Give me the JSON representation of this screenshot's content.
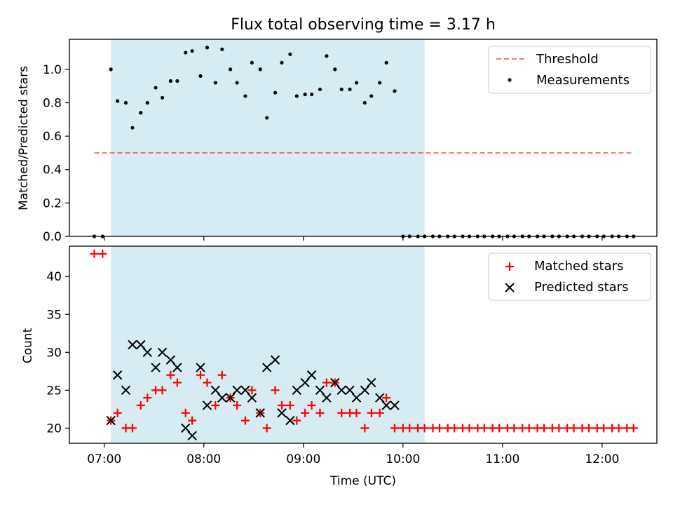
{
  "figure": {
    "title": "Flux total observing time = 3.17 h",
    "background": "#ffffff"
  },
  "chart_data": [
    {
      "type": "scatter",
      "name": "top",
      "ylabel": "Matched/Predicted stars",
      "xlabel": "",
      "ylim": [
        0.0,
        1.18
      ],
      "yticks": [
        0.0,
        0.2,
        0.4,
        0.6,
        0.8,
        1.0
      ],
      "ytick_labels": [
        "0.0",
        "0.2",
        "0.4",
        "0.6",
        "0.8",
        "1.0"
      ],
      "xlim": [
        "06:39",
        "12:33"
      ],
      "xticks": [
        "07:00",
        "08:00",
        "09:00",
        "10:00",
        "11:00",
        "12:00"
      ],
      "xtick_labels": [
        "07:00",
        "08:00",
        "09:00",
        "10:00",
        "11:00",
        "12:00"
      ],
      "grid": false,
      "legend_position": "top-right",
      "observing_window": {
        "start": "07:04",
        "end": "10:13",
        "color": "#add8e6"
      },
      "threshold": {
        "label": "Threshold",
        "value": 0.5,
        "x_range": [
          "06:54",
          "12:18"
        ],
        "color": "#ff0000",
        "style": "dashed"
      },
      "measurements": {
        "label": "Measurements",
        "color": "#000000",
        "points": [
          [
            "06:54",
            0.0
          ],
          [
            "06:59",
            0.0
          ],
          [
            "07:04",
            1.0
          ],
          [
            "07:08",
            0.81
          ],
          [
            "07:13",
            0.8
          ],
          [
            "07:17",
            0.65
          ],
          [
            "07:22",
            0.74
          ],
          [
            "07:26",
            0.8
          ],
          [
            "07:31",
            0.89
          ],
          [
            "07:35",
            0.83
          ],
          [
            "07:40",
            0.93
          ],
          [
            "07:44",
            0.93
          ],
          [
            "07:49",
            1.1
          ],
          [
            "07:53",
            1.11
          ],
          [
            "07:58",
            0.96
          ],
          [
            "08:02",
            1.13
          ],
          [
            "08:07",
            0.92
          ],
          [
            "08:11",
            1.12
          ],
          [
            "08:16",
            1.0
          ],
          [
            "08:20",
            0.92
          ],
          [
            "08:25",
            0.84
          ],
          [
            "08:29",
            1.04
          ],
          [
            "08:34",
            1.0
          ],
          [
            "08:38",
            0.71
          ],
          [
            "08:43",
            0.86
          ],
          [
            "08:47",
            1.04
          ],
          [
            "08:52",
            1.09
          ],
          [
            "08:56",
            0.84
          ],
          [
            "09:01",
            0.85
          ],
          [
            "09:05",
            0.85
          ],
          [
            "09:10",
            0.88
          ],
          [
            "09:14",
            1.08
          ],
          [
            "09:19",
            1.0
          ],
          [
            "09:23",
            0.88
          ],
          [
            "09:28",
            0.88
          ],
          [
            "09:32",
            0.92
          ],
          [
            "09:37",
            0.8
          ],
          [
            "09:41",
            0.84
          ],
          [
            "09:46",
            0.92
          ],
          [
            "09:50",
            1.04
          ],
          [
            "09:55",
            0.87
          ],
          [
            "10:00",
            0.0
          ],
          [
            "10:04",
            0.0
          ],
          [
            "10:09",
            0.0
          ],
          [
            "10:13",
            0.0
          ],
          [
            "10:18",
            0.0
          ],
          [
            "10:22",
            0.0
          ],
          [
            "10:27",
            0.0
          ],
          [
            "10:31",
            0.0
          ],
          [
            "10:36",
            0.0
          ],
          [
            "10:40",
            0.0
          ],
          [
            "10:45",
            0.0
          ],
          [
            "10:49",
            0.0
          ],
          [
            "10:54",
            0.0
          ],
          [
            "10:58",
            0.0
          ],
          [
            "11:03",
            0.0
          ],
          [
            "11:07",
            0.0
          ],
          [
            "11:12",
            0.0
          ],
          [
            "11:16",
            0.0
          ],
          [
            "11:21",
            0.0
          ],
          [
            "11:25",
            0.0
          ],
          [
            "11:30",
            0.0
          ],
          [
            "11:34",
            0.0
          ],
          [
            "11:39",
            0.0
          ],
          [
            "11:43",
            0.0
          ],
          [
            "11:48",
            0.0
          ],
          [
            "11:52",
            0.0
          ],
          [
            "11:57",
            0.0
          ],
          [
            "12:01",
            0.0
          ],
          [
            "12:06",
            0.0
          ],
          [
            "12:10",
            0.0
          ],
          [
            "12:15",
            0.0
          ],
          [
            "12:19",
            0.0
          ]
        ]
      }
    },
    {
      "type": "scatter",
      "name": "bottom",
      "ylabel": "Count",
      "xlabel": "Time (UTC)",
      "ylim": [
        18.0,
        44.0
      ],
      "yticks": [
        20,
        25,
        30,
        35,
        40
      ],
      "ytick_labels": [
        "20",
        "25",
        "30",
        "35",
        "40"
      ],
      "xlim": [
        "06:39",
        "12:33"
      ],
      "xticks": [
        "07:00",
        "08:00",
        "09:00",
        "10:00",
        "11:00",
        "12:00"
      ],
      "xtick_labels": [
        "07:00",
        "08:00",
        "09:00",
        "10:00",
        "11:00",
        "12:00"
      ],
      "grid": false,
      "legend_position": "top-right",
      "observing_window": {
        "start": "07:04",
        "end": "10:13",
        "color": "#add8e6"
      },
      "series": [
        {
          "name": "Matched stars",
          "marker": "plus",
          "color": "#ff0000",
          "points": [
            [
              "06:54",
              43
            ],
            [
              "06:59",
              43
            ],
            [
              "07:04",
              21
            ],
            [
              "07:08",
              22
            ],
            [
              "07:13",
              20
            ],
            [
              "07:17",
              20
            ],
            [
              "07:22",
              23
            ],
            [
              "07:26",
              24
            ],
            [
              "07:31",
              25
            ],
            [
              "07:35",
              25
            ],
            [
              "07:40",
              27
            ],
            [
              "07:44",
              26
            ],
            [
              "07:49",
              22
            ],
            [
              "07:53",
              21
            ],
            [
              "07:58",
              27
            ],
            [
              "08:02",
              26
            ],
            [
              "08:07",
              23
            ],
            [
              "08:11",
              27
            ],
            [
              "08:16",
              24
            ],
            [
              "08:20",
              23
            ],
            [
              "08:25",
              21
            ],
            [
              "08:29",
              25
            ],
            [
              "08:34",
              22
            ],
            [
              "08:38",
              20
            ],
            [
              "08:43",
              25
            ],
            [
              "08:47",
              23
            ],
            [
              "08:52",
              23
            ],
            [
              "08:56",
              21
            ],
            [
              "09:01",
              22
            ],
            [
              "09:05",
              23
            ],
            [
              "09:10",
              22
            ],
            [
              "09:14",
              26
            ],
            [
              "09:19",
              26
            ],
            [
              "09:23",
              22
            ],
            [
              "09:28",
              22
            ],
            [
              "09:32",
              22
            ],
            [
              "09:37",
              20
            ],
            [
              "09:41",
              22
            ],
            [
              "09:46",
              22
            ],
            [
              "09:50",
              24
            ],
            [
              "09:55",
              20
            ],
            [
              "10:00",
              20
            ],
            [
              "10:04",
              20
            ],
            [
              "10:09",
              20
            ],
            [
              "10:13",
              20
            ],
            [
              "10:18",
              20
            ],
            [
              "10:22",
              20
            ],
            [
              "10:27",
              20
            ],
            [
              "10:31",
              20
            ],
            [
              "10:36",
              20
            ],
            [
              "10:40",
              20
            ],
            [
              "10:45",
              20
            ],
            [
              "10:49",
              20
            ],
            [
              "10:54",
              20
            ],
            [
              "10:58",
              20
            ],
            [
              "11:03",
              20
            ],
            [
              "11:07",
              20
            ],
            [
              "11:12",
              20
            ],
            [
              "11:16",
              20
            ],
            [
              "11:21",
              20
            ],
            [
              "11:25",
              20
            ],
            [
              "11:30",
              20
            ],
            [
              "11:34",
              20
            ],
            [
              "11:39",
              20
            ],
            [
              "11:43",
              20
            ],
            [
              "11:48",
              20
            ],
            [
              "11:52",
              20
            ],
            [
              "11:57",
              20
            ],
            [
              "12:01",
              20
            ],
            [
              "12:06",
              20
            ],
            [
              "12:10",
              20
            ],
            [
              "12:15",
              20
            ],
            [
              "12:19",
              20
            ]
          ]
        },
        {
          "name": "Predicted stars",
          "marker": "x",
          "color": "#000000",
          "points": [
            [
              "07:04",
              21
            ],
            [
              "07:08",
              27
            ],
            [
              "07:13",
              25
            ],
            [
              "07:17",
              31
            ],
            [
              "07:22",
              31
            ],
            [
              "07:26",
              30
            ],
            [
              "07:31",
              28
            ],
            [
              "07:35",
              30
            ],
            [
              "07:40",
              29
            ],
            [
              "07:44",
              28
            ],
            [
              "07:49",
              20
            ],
            [
              "07:53",
              19
            ],
            [
              "07:58",
              28
            ],
            [
              "08:02",
              23
            ],
            [
              "08:07",
              25
            ],
            [
              "08:11",
              24
            ],
            [
              "08:16",
              24
            ],
            [
              "08:20",
              25
            ],
            [
              "08:25",
              25
            ],
            [
              "08:29",
              24
            ],
            [
              "08:34",
              22
            ],
            [
              "08:38",
              28
            ],
            [
              "08:43",
              29
            ],
            [
              "08:47",
              22
            ],
            [
              "08:52",
              21
            ],
            [
              "08:56",
              25
            ],
            [
              "09:01",
              26
            ],
            [
              "09:05",
              27
            ],
            [
              "09:10",
              25
            ],
            [
              "09:14",
              24
            ],
            [
              "09:19",
              26
            ],
            [
              "09:23",
              25
            ],
            [
              "09:28",
              25
            ],
            [
              "09:32",
              24
            ],
            [
              "09:37",
              25
            ],
            [
              "09:41",
              26
            ],
            [
              "09:46",
              24
            ],
            [
              "09:50",
              23
            ],
            [
              "09:55",
              23
            ]
          ]
        }
      ]
    }
  ]
}
